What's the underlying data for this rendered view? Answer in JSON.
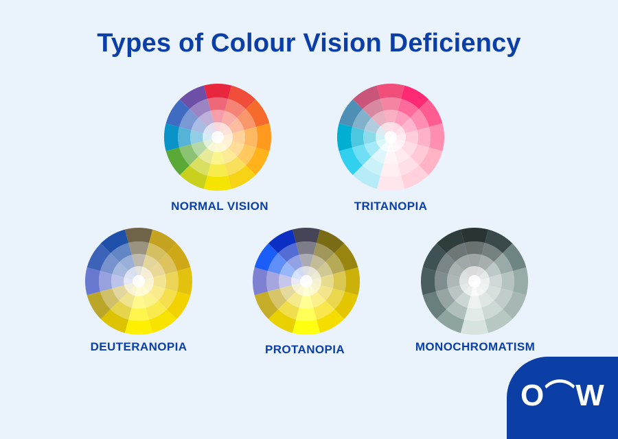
{
  "title": "Types of Colour Vision Deficiency",
  "logo": {
    "text": "O⌒W"
  },
  "wheels": [
    {
      "label": "NORMAL VISION",
      "colors": [
        "#e8273f",
        "#f04e3b",
        "#f66a2b",
        "#ff9a1e",
        "#ffb21a",
        "#f7d316",
        "#f5e400",
        "#c8d11d",
        "#5aa936",
        "#0a93c6",
        "#3f6cc2",
        "#6e4fa8"
      ]
    },
    {
      "label": "TRITANOPIA",
      "colors": [
        "#f14f7a",
        "#ff2a73",
        "#ff5d91",
        "#ff8fb0",
        "#ffb3c5",
        "#ffd1dd",
        "#ffe6ec",
        "#b6ecf7",
        "#32d0ef",
        "#00afd1",
        "#4d8fb5",
        "#c9557a"
      ]
    },
    {
      "label": "DEUTERANOPIA",
      "colors": [
        "#6f6448",
        "#c3a320",
        "#cfa817",
        "#e2c20e",
        "#f2d100",
        "#f7e200",
        "#fff000",
        "#dcc200",
        "#bca629",
        "#6a79d0",
        "#3c63b8",
        "#1e50a9"
      ]
    },
    {
      "label": "PROTANOPIA",
      "colors": [
        "#454557",
        "#7a6b15",
        "#98850f",
        "#cab008",
        "#e3c600",
        "#f6dd00",
        "#ffff10",
        "#e9d000",
        "#c6ad28",
        "#7e80d1",
        "#1a5ef7",
        "#0a2fc2"
      ]
    },
    {
      "label": "MONOCHROMATISM",
      "colors": [
        "#293534",
        "#3a4a4b",
        "#6f8584",
        "#97aba7",
        "#a7b8b4",
        "#b7c8c3",
        "#d6e3de",
        "#8ea49f",
        "#697f7d",
        "#4b5e5f",
        "#3f5152",
        "#2f3d3d"
      ]
    }
  ]
}
